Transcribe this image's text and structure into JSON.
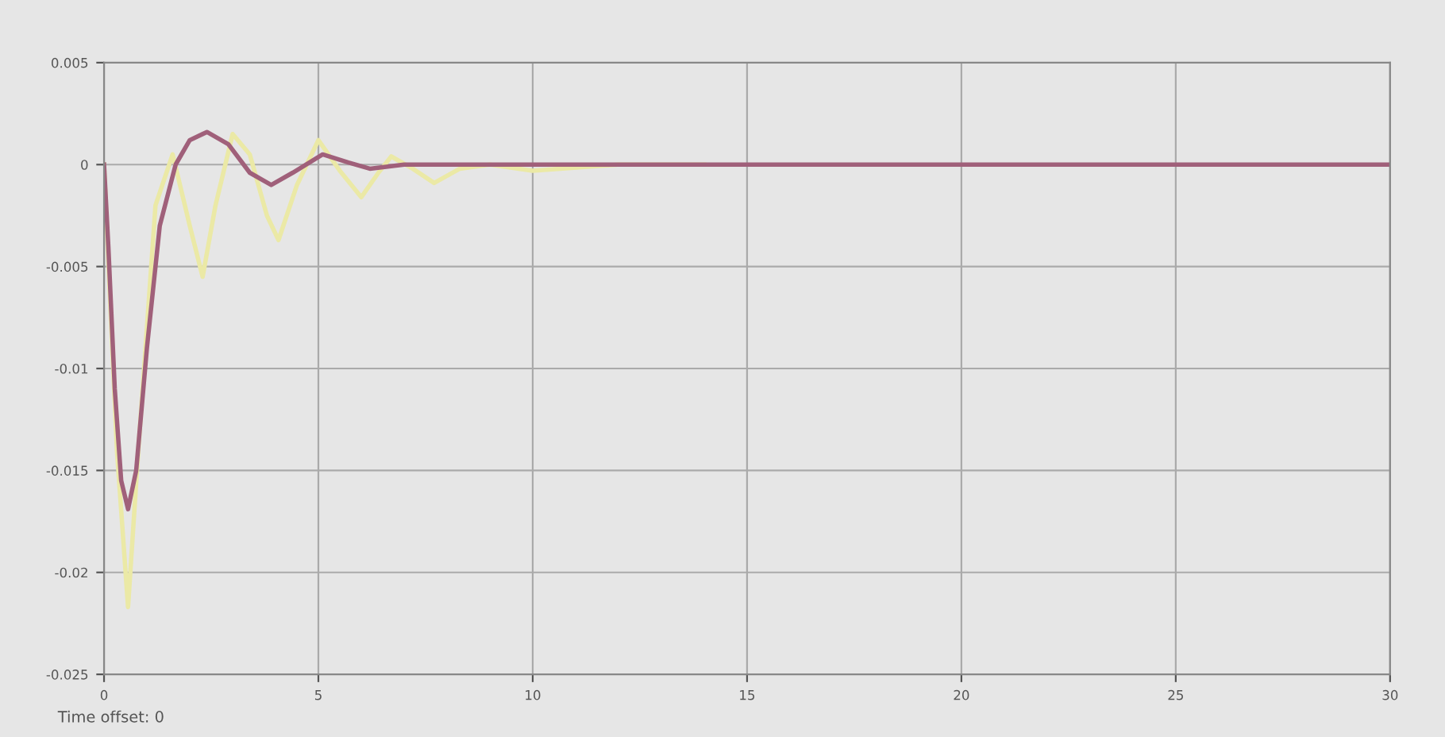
{
  "chart_data": {
    "type": "line",
    "xlim": [
      0,
      30
    ],
    "ylim": [
      -0.025,
      0.005
    ],
    "xticks": [
      0,
      5,
      10,
      15,
      20,
      25,
      30
    ],
    "yticks": [
      0.005,
      0,
      -0.005,
      -0.01,
      -0.015,
      -0.02,
      -0.025
    ],
    "grid": true,
    "annotations": [
      "Time offset: 0"
    ],
    "series": [
      {
        "color": "#ebe9a6",
        "x": [
          0,
          0.3,
          0.56,
          0.8,
          1.2,
          1.6,
          2.0,
          2.3,
          2.6,
          3.0,
          3.4,
          3.8,
          4.07,
          4.5,
          5.0,
          5.5,
          6.0,
          6.4,
          6.7,
          7.2,
          7.7,
          8.3,
          9,
          10,
          12,
          14
        ],
        "values": [
          0,
          -0.014,
          -0.0217,
          -0.014,
          -0.002,
          0.0005,
          -0.003,
          -0.0055,
          -0.002,
          0.0015,
          0.0005,
          -0.0025,
          -0.0037,
          -0.001,
          0.0012,
          -0.0003,
          -0.0016,
          -0.0004,
          0.0004,
          -0.0002,
          -0.0009,
          -0.0002,
          0,
          -0.0003,
          0,
          0
        ]
      },
      {
        "color": "#a0607a",
        "x": [
          0,
          0.1,
          0.25,
          0.4,
          0.56,
          0.75,
          1.0,
          1.3,
          1.67,
          2.0,
          2.4,
          2.9,
          3.4,
          3.9,
          4.4,
          5.1,
          5.7,
          6.2,
          7,
          8,
          10,
          30
        ],
        "values": [
          0,
          -0.004,
          -0.011,
          -0.0155,
          -0.0169,
          -0.015,
          -0.009,
          -0.003,
          0,
          0.0012,
          0.0016,
          0.001,
          -0.0004,
          -0.001,
          -0.0004,
          0.0005,
          0.0001,
          -0.0002,
          0,
          0,
          0,
          0
        ]
      }
    ]
  }
}
